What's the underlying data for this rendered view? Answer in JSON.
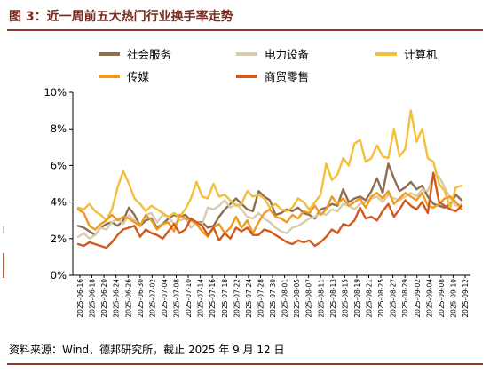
{
  "header": {
    "title": "图 3：近一周前五大热门行业换手率走势"
  },
  "footer": {
    "source": "资料来源：Wind、德邦研究所，截止 2025 年 9 月 12 日"
  },
  "chart_data": {
    "type": "line",
    "legend_position": "top",
    "grid": false,
    "ylim": [
      0,
      10
    ],
    "yticks": [
      "0%",
      "2%",
      "4%",
      "6%",
      "8%",
      "10%"
    ],
    "x_labels": [
      "2025-06-16",
      "2025-06-18",
      "2025-06-20",
      "2025-06-24",
      "2025-06-26",
      "2025-06-30",
      "2025-07-02",
      "2025-07-04",
      "2025-07-08",
      "2025-07-10",
      "2025-07-14",
      "2025-07-16",
      "2025-07-18",
      "2025-07-22",
      "2025-07-24",
      "2025-07-28",
      "2025-07-30",
      "2025-08-01",
      "2025-08-05",
      "2025-08-07",
      "2025-08-11",
      "2025-08-13",
      "2025-08-15",
      "2025-08-19",
      "2025-08-21",
      "2025-08-25",
      "2025-08-27",
      "2025-08-29",
      "2025-09-02",
      "2025-09-04",
      "2025-09-08",
      "2025-09-10",
      "2025-09-12"
    ],
    "series": [
      {
        "name": "社会服务",
        "color": "#8d6e4f",
        "values": [
          2.7,
          2.6,
          2.4,
          2.2,
          2.6,
          2.8,
          2.9,
          2.7,
          3.0,
          3.7,
          3.3,
          2.7,
          3.0,
          3.1,
          2.6,
          2.8,
          3.1,
          3.3,
          3.2,
          3.3,
          3.0,
          2.9,
          2.9,
          2.6,
          2.7,
          3.2,
          3.6,
          3.9,
          4.2,
          3.9,
          3.6,
          3.5,
          4.6,
          4.3,
          4.1,
          3.3,
          3.4,
          3.6,
          3.5,
          3.7,
          3.4,
          3.3,
          3.1,
          3.6,
          3.7,
          3.9,
          3.8,
          4.7,
          4.0,
          4.2,
          4.3,
          4.1,
          4.6,
          5.3,
          4.5,
          6.1,
          5.3,
          4.6,
          4.8,
          5.1,
          4.7,
          4.9,
          4.3,
          3.9,
          3.8,
          3.7,
          3.9,
          4.4,
          4.1
        ]
      },
      {
        "name": "电力设备",
        "color": "#d8cbb0",
        "values": [
          2.1,
          2.3,
          2.0,
          2.2,
          2.6,
          2.5,
          2.9,
          3.1,
          2.8,
          3.3,
          3.0,
          2.7,
          3.3,
          3.4,
          2.9,
          3.3,
          3.2,
          2.8,
          3.0,
          3.1,
          2.6,
          2.9,
          2.8,
          3.7,
          3.6,
          3.8,
          4.1,
          3.7,
          3.9,
          3.6,
          3.2,
          3.1,
          3.4,
          3.1,
          2.9,
          2.6,
          2.4,
          2.3,
          2.6,
          2.7,
          2.9,
          3.1,
          3.2,
          3.4,
          3.3,
          3.6,
          3.5,
          3.9,
          3.8,
          3.6,
          3.9,
          4.0,
          4.2,
          4.3,
          4.0,
          4.4,
          4.2,
          4.1,
          4.3,
          4.5,
          4.3,
          4.7,
          4.6,
          5.5,
          5.4,
          4.8,
          4.2,
          3.8,
          3.9
        ]
      },
      {
        "name": "计算机",
        "color": "#f3bf3a",
        "values": [
          3.7,
          3.6,
          3.9,
          3.5,
          3.3,
          3.0,
          3.6,
          4.8,
          5.7,
          5.0,
          4.2,
          3.9,
          3.5,
          3.8,
          3.6,
          3.4,
          3.2,
          3.4,
          3.2,
          3.6,
          4.2,
          5.1,
          4.3,
          4.2,
          5.0,
          4.3,
          4.4,
          4.1,
          3.8,
          3.9,
          4.6,
          4.3,
          4.4,
          4.2,
          3.7,
          3.9,
          3.6,
          3.5,
          3.7,
          4.2,
          4.0,
          3.6,
          4.0,
          4.4,
          6.1,
          5.2,
          5.5,
          6.4,
          6.0,
          7.2,
          7.4,
          6.2,
          6.4,
          7.1,
          6.5,
          6.4,
          8.0,
          6.5,
          6.9,
          9.0,
          7.3,
          8.0,
          6.4,
          6.2,
          5.0,
          4.6,
          3.7,
          4.8,
          4.9
        ]
      },
      {
        "name": "传媒",
        "color": "#f29a1e",
        "values": [
          3.6,
          3.4,
          2.7,
          2.5,
          2.8,
          3.0,
          3.3,
          3.0,
          3.2,
          3.1,
          2.9,
          2.7,
          3.3,
          3.0,
          2.5,
          2.8,
          2.9,
          2.4,
          3.3,
          3.1,
          3.0,
          2.8,
          2.4,
          2.1,
          2.6,
          2.8,
          2.3,
          2.6,
          3.2,
          2.6,
          3.0,
          2.3,
          2.9,
          3.4,
          3.6,
          3.2,
          3.1,
          2.9,
          3.3,
          3.1,
          3.5,
          3.4,
          3.8,
          3.3,
          3.6,
          4.3,
          3.9,
          4.2,
          3.8,
          4.0,
          4.2,
          3.7,
          4.3,
          4.5,
          4.2,
          4.6,
          3.9,
          4.2,
          4.5,
          4.3,
          4.1,
          4.5,
          3.8,
          3.7,
          3.9,
          4.2,
          4.3,
          4.0,
          3.6
        ]
      },
      {
        "name": "商贸零售",
        "color": "#d2591d",
        "values": [
          1.7,
          1.6,
          1.8,
          1.7,
          1.6,
          1.5,
          1.8,
          2.2,
          2.5,
          2.6,
          2.7,
          2.1,
          2.5,
          2.3,
          2.2,
          2.0,
          2.4,
          2.8,
          2.3,
          2.5,
          3.1,
          2.9,
          2.7,
          2.2,
          2.6,
          1.9,
          2.3,
          2.0,
          2.6,
          2.4,
          2.6,
          2.2,
          2.2,
          2.5,
          2.4,
          2.2,
          2.0,
          1.8,
          1.7,
          1.9,
          1.8,
          1.9,
          1.6,
          1.8,
          2.1,
          2.5,
          2.3,
          2.8,
          2.7,
          3.0,
          3.7,
          3.1,
          3.2,
          3.0,
          3.5,
          3.9,
          3.2,
          3.6,
          4.1,
          3.8,
          3.6,
          4.0,
          3.4,
          5.6,
          4.0,
          3.8,
          3.6,
          3.5,
          3.8
        ]
      }
    ]
  }
}
